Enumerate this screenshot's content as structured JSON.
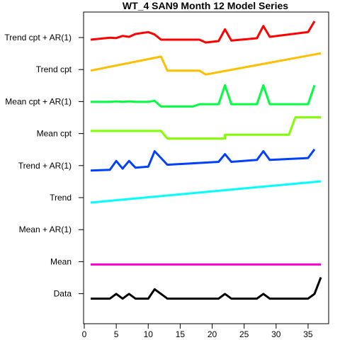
{
  "chart_data": {
    "type": "line",
    "title": "WT_4 SAN9 Month 12 Model Series",
    "xlim": [
      1,
      37
    ],
    "x_ticks": [
      0,
      5,
      10,
      15,
      20,
      25,
      30,
      35
    ],
    "x_tick_labels": [
      "0",
      "5",
      "10",
      "15",
      "20",
      "25",
      "30",
      "35"
    ],
    "grid": false,
    "series": [
      {
        "name": "Data",
        "color": "#000000",
        "points": [
          [
            1,
            0
          ],
          [
            4,
            0
          ],
          [
            5,
            1
          ],
          [
            6,
            0
          ],
          [
            7,
            1
          ],
          [
            8,
            0
          ],
          [
            10,
            0
          ],
          [
            11,
            2
          ],
          [
            13,
            0
          ],
          [
            21,
            0
          ],
          [
            22,
            1
          ],
          [
            23,
            0
          ],
          [
            27,
            0
          ],
          [
            28,
            1
          ],
          [
            29,
            0
          ],
          [
            35,
            0
          ],
          [
            36,
            1
          ],
          [
            37,
            4.5
          ]
        ]
      },
      {
        "name": "Mean",
        "color": "#ff00cc",
        "points": [
          [
            1,
            0
          ],
          [
            37,
            0
          ]
        ]
      },
      {
        "name": "Mean + AR(1)",
        "color": "#9900ff",
        "points": []
      },
      {
        "name": "Trend",
        "color": "#00ffff",
        "points": [
          [
            1,
            0
          ],
          [
            37,
            1
          ]
        ]
      },
      {
        "name": "Trend + AR(1)",
        "color": "#0040ff",
        "points": [
          [
            1,
            0
          ],
          [
            4,
            0.08
          ],
          [
            5,
            1
          ],
          [
            6,
            0.2
          ],
          [
            7,
            1
          ],
          [
            8,
            0.3
          ],
          [
            10,
            0.4
          ],
          [
            11,
            2
          ],
          [
            13,
            0.6
          ],
          [
            21,
            0.9
          ],
          [
            22,
            1.7
          ],
          [
            23,
            0.9
          ],
          [
            27,
            1.1
          ],
          [
            28,
            2
          ],
          [
            29,
            1.1
          ],
          [
            35,
            1.3
          ],
          [
            36,
            2.2
          ]
        ]
      },
      {
        "name": "Mean cpt",
        "color": "#80ff00",
        "points": [
          [
            1,
            0
          ],
          [
            12,
            0
          ],
          [
            13,
            -1
          ],
          [
            19,
            -1
          ],
          [
            22,
            -1
          ],
          [
            22,
            -0.5
          ],
          [
            31,
            -0.5
          ],
          [
            32,
            -0.5
          ],
          [
            33,
            1.8
          ],
          [
            37,
            1.8
          ]
        ]
      },
      {
        "name": "Mean cpt + AR(1)",
        "color": "#00ff40",
        "points": [
          [
            1,
            0
          ],
          [
            4,
            0
          ],
          [
            5,
            0.1
          ],
          [
            6,
            0
          ],
          [
            7,
            0.1
          ],
          [
            8,
            0
          ],
          [
            10,
            0
          ],
          [
            11,
            0.2
          ],
          [
            12,
            -1
          ],
          [
            16,
            -1
          ],
          [
            17,
            -1
          ],
          [
            18,
            -0.5
          ],
          [
            21,
            -0.5
          ],
          [
            22,
            3.5
          ],
          [
            23,
            -0.5
          ],
          [
            27,
            -0.5
          ],
          [
            28,
            3.5
          ],
          [
            29,
            -0.5
          ],
          [
            35,
            -0.5
          ],
          [
            36,
            3.5
          ]
        ]
      },
      {
        "name": "Trend cpt",
        "color": "#ffbf00",
        "points": [
          [
            1,
            0
          ],
          [
            12,
            2.5
          ],
          [
            13,
            0
          ],
          [
            18,
            0
          ],
          [
            19,
            -0.7
          ],
          [
            37,
            3.1
          ]
        ]
      },
      {
        "name": "Trend cpt + AR(1)",
        "color": "#ff0000",
        "points": [
          [
            1,
            0
          ],
          [
            4,
            0.4
          ],
          [
            5,
            0.35
          ],
          [
            6,
            0.8
          ],
          [
            7,
            0.6
          ],
          [
            8,
            1.2
          ],
          [
            10,
            1.6
          ],
          [
            11,
            1.1
          ],
          [
            12,
            0
          ],
          [
            18,
            0
          ],
          [
            19,
            -0.6
          ],
          [
            21,
            -0.3
          ],
          [
            22,
            2.2
          ],
          [
            23,
            -0.2
          ],
          [
            27,
            0.3
          ],
          [
            28,
            2.9
          ],
          [
            29,
            0.6
          ],
          [
            35,
            1.6
          ],
          [
            36,
            3.9
          ]
        ]
      }
    ]
  }
}
